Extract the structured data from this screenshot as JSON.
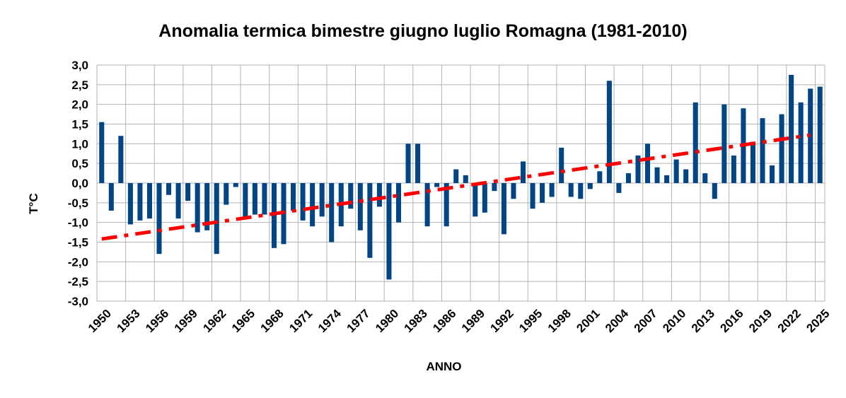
{
  "chart_data": {
    "type": "bar",
    "title": "Anomalia termica bimestre giugno luglio Romagna (1981-2010)",
    "xlabel": "ANNO",
    "ylabel": "T°C",
    "ylim": [
      -3.0,
      3.0
    ],
    "yticks": [
      "-3,0",
      "-2,5",
      "-2,0",
      "-1,5",
      "-1,0",
      "-0,5",
      "0,0",
      "0,5",
      "1,0",
      "1,5",
      "2,0",
      "2,5",
      "3,0"
    ],
    "xtick_labels": [
      "1950",
      "1953",
      "1956",
      "1959",
      "1962",
      "1965",
      "1968",
      "1971",
      "1974",
      "1977",
      "1980",
      "1983",
      "1986",
      "1989",
      "1992",
      "1995",
      "1998",
      "2001",
      "2004",
      "2007",
      "2010",
      "2013",
      "2016",
      "2019",
      "2022",
      "2025"
    ],
    "grid": true,
    "colors": {
      "bars": "#004586",
      "trend": "#ff0000",
      "grid": "#b3b3b3"
    },
    "series": [
      {
        "categories": [
          1950,
          1951,
          1952,
          1953,
          1954,
          1955,
          1956,
          1957,
          1958,
          1959,
          1960,
          1961,
          1962,
          1963,
          1964,
          1965,
          1966,
          1967,
          1968,
          1969,
          1970,
          1971,
          1972,
          1973,
          1974,
          1975,
          1976,
          1977,
          1978,
          1979,
          1980,
          1981,
          1982,
          1983,
          1984,
          1985,
          1986,
          1987,
          1988,
          1989,
          1990,
          1991,
          1992,
          1993,
          1994,
          1995,
          1996,
          1997,
          1998,
          1999,
          2000,
          2001,
          2002,
          2003,
          2004,
          2005,
          2006,
          2007,
          2008,
          2009,
          2010,
          2011,
          2012,
          2013,
          2014,
          2015,
          2016,
          2017,
          2018,
          2019,
          2020,
          2021,
          2022,
          2023,
          2024,
          2025
        ],
        "values": [
          1.55,
          -0.7,
          1.2,
          -1.05,
          -0.95,
          -0.9,
          -1.8,
          -0.3,
          -0.9,
          -0.45,
          -1.25,
          -1.2,
          -1.8,
          -0.55,
          -0.1,
          -0.85,
          -0.8,
          -0.8,
          -1.65,
          -1.55,
          -0.7,
          -0.95,
          -1.1,
          -0.85,
          -1.5,
          -1.1,
          -0.65,
          -1.2,
          -1.9,
          -0.6,
          -2.45,
          -1.0,
          1.0,
          1.0,
          -1.1,
          -0.1,
          -1.1,
          0.35,
          0.2,
          -0.85,
          -0.75,
          -0.2,
          -1.3,
          -0.4,
          0.55,
          -0.65,
          -0.5,
          -0.35,
          0.9,
          -0.35,
          -0.4,
          -0.15,
          0.3,
          2.6,
          -0.25,
          0.25,
          0.7,
          1.0,
          0.4,
          0.2,
          0.6,
          0.35,
          2.05,
          0.25,
          -0.4,
          2.0,
          0.7,
          1.9,
          1.05,
          1.65,
          0.45,
          1.75,
          2.75,
          2.05,
          2.4,
          2.45
        ]
      }
    ],
    "trendline": {
      "style": "dash-dot",
      "start": [
        1950,
        -1.42
      ],
      "end": [
        2024,
        1.22
      ]
    }
  }
}
